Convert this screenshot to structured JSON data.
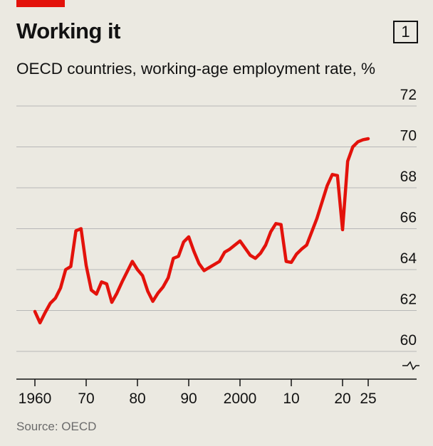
{
  "header": {
    "title": "Working it",
    "chart_number": "1",
    "subtitle": "OECD countries, working-age employment rate, %"
  },
  "footer": {
    "source": "Source: OECD"
  },
  "colors": {
    "accent": "#e3120b",
    "line": "#e3120b",
    "background": "#ebe9e1",
    "grid": "#b7b7b7"
  },
  "chart_data": {
    "type": "line",
    "title": "Working it",
    "subtitle": "OECD countries, working-age employment rate, %",
    "xlabel": "",
    "ylabel": "%",
    "xlim": [
      1960,
      2025
    ],
    "ylim": [
      60,
      72
    ],
    "y_ticks": [
      60,
      62,
      64,
      66,
      68,
      70,
      72
    ],
    "y_tick_labels": [
      "60",
      "62",
      "64",
      "66",
      "68",
      "70",
      "72"
    ],
    "x_ticks": [
      1960,
      1970,
      1980,
      1990,
      2000,
      2010,
      2020,
      2025
    ],
    "x_tick_labels": [
      "1960",
      "70",
      "80",
      "90",
      "2000",
      "10",
      "20",
      "25"
    ],
    "y_axis_side": "right",
    "y_axis_break": true,
    "grid": true,
    "legend": "none",
    "series": [
      {
        "x": [
          1960,
          1961,
          1962,
          1963,
          1964,
          1965,
          1966,
          1967,
          1968,
          1969,
          1970,
          1971,
          1972,
          1973,
          1974,
          1975,
          1976,
          1977,
          1978,
          1979,
          1980,
          1981,
          1982,
          1983,
          1984,
          1985,
          1986,
          1987,
          1988,
          1989,
          1990,
          1991,
          1992,
          1993,
          1994,
          1995,
          1996,
          1997,
          1998,
          1999,
          2000,
          2001,
          2002,
          2003,
          2004,
          2005,
          2006,
          2007,
          2008,
          2009,
          2010,
          2011,
          2012,
          2013,
          2014,
          2015,
          2016,
          2017,
          2018,
          2019,
          2020,
          2021,
          2022,
          2023,
          2024,
          2025
        ],
        "values": [
          61.95,
          61.4,
          61.9,
          62.35,
          62.6,
          63.1,
          64.0,
          64.15,
          65.9,
          66.0,
          64.2,
          63.0,
          62.8,
          63.4,
          63.3,
          62.4,
          62.85,
          63.4,
          63.9,
          64.4,
          64.0,
          63.7,
          62.95,
          62.45,
          62.85,
          63.15,
          63.6,
          64.55,
          64.65,
          65.35,
          65.6,
          64.9,
          64.3,
          63.95,
          64.1,
          64.25,
          64.4,
          64.85,
          65.0,
          65.2,
          65.4,
          65.05,
          64.7,
          64.55,
          64.8,
          65.2,
          65.85,
          66.25,
          66.2,
          64.4,
          64.35,
          64.75,
          65.0,
          65.2,
          65.85,
          66.5,
          67.3,
          68.1,
          68.65,
          68.6,
          65.95,
          69.3,
          70.0,
          70.25,
          70.35,
          70.4
        ]
      }
    ]
  }
}
